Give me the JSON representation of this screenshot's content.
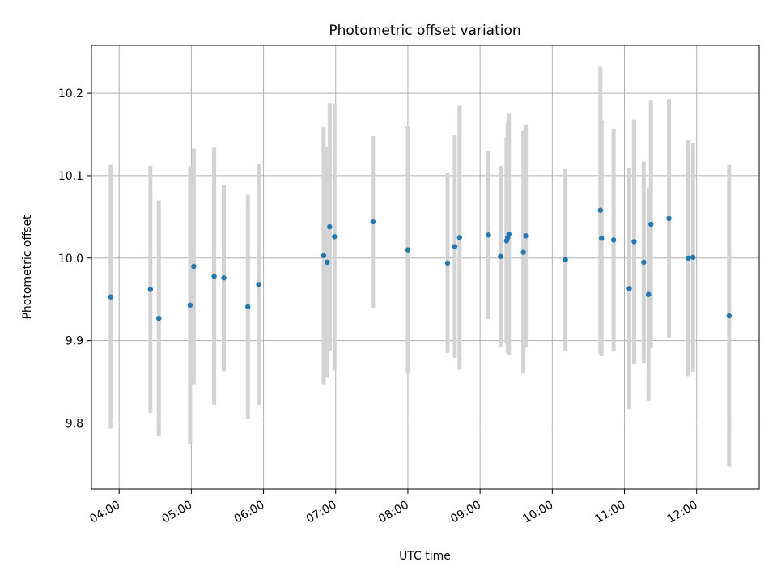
{
  "chart_data": {
    "type": "scatter",
    "title": "Photometric offset variation",
    "xlabel": "UTC time",
    "ylabel": "Photometric offset",
    "x_range": [
      "03:37",
      "12:52"
    ],
    "ylim": [
      9.72,
      10.258
    ],
    "x_ticks": [
      "04:00",
      "05:00",
      "06:00",
      "07:00",
      "08:00",
      "09:00",
      "10:00",
      "11:00",
      "12:00"
    ],
    "y_ticks": [
      9.8,
      9.9,
      10.0,
      10.1,
      10.2
    ],
    "y_tick_labels": [
      "9.8",
      "9.9",
      "10.0",
      "10.1",
      "10.2"
    ],
    "grid": true,
    "marker_color": "#1f77b4",
    "errorbar_color": "#d3d3d3",
    "points": [
      {
        "time": "03:53",
        "y": 9.953,
        "err": 0.16
      },
      {
        "time": "04:26",
        "y": 9.962,
        "err": 0.15
      },
      {
        "time": "04:33",
        "y": 9.927,
        "err": 0.143
      },
      {
        "time": "04:59",
        "y": 9.943,
        "err": 0.168
      },
      {
        "time": "05:02",
        "y": 9.99,
        "err": 0.143
      },
      {
        "time": "05:19",
        "y": 9.978,
        "err": 0.156
      },
      {
        "time": "05:27",
        "y": 9.976,
        "err": 0.113
      },
      {
        "time": "05:47",
        "y": 9.941,
        "err": 0.136
      },
      {
        "time": "05:56",
        "y": 9.968,
        "err": 0.146
      },
      {
        "time": "06:50",
        "y": 10.003,
        "err": 0.156
      },
      {
        "time": "06:53",
        "y": 9.995,
        "err": 0.14
      },
      {
        "time": "06:55",
        "y": 10.038,
        "err": 0.15
      },
      {
        "time": "06:59",
        "y": 10.026,
        "err": 0.162
      },
      {
        "time": "07:31",
        "y": 10.044,
        "err": 0.104
      },
      {
        "time": "08:00",
        "y": 10.01,
        "err": 0.15
      },
      {
        "time": "08:33",
        "y": 9.994,
        "err": 0.109
      },
      {
        "time": "08:39",
        "y": 10.014,
        "err": 0.135
      },
      {
        "time": "08:43",
        "y": 10.025,
        "err": 0.16
      },
      {
        "time": "09:07",
        "y": 10.028,
        "err": 0.102
      },
      {
        "time": "09:17",
        "y": 10.002,
        "err": 0.11
      },
      {
        "time": "09:22",
        "y": 10.021,
        "err": 0.125
      },
      {
        "time": "09:23",
        "y": 10.025,
        "err": 0.14
      },
      {
        "time": "09:24",
        "y": 10.029,
        "err": 0.146
      },
      {
        "time": "09:36",
        "y": 10.007,
        "err": 0.147
      },
      {
        "time": "09:38",
        "y": 10.027,
        "err": 0.135
      },
      {
        "time": "10:11",
        "y": 9.998,
        "err": 0.11
      },
      {
        "time": "10:40",
        "y": 10.058,
        "err": 0.174
      },
      {
        "time": "10:41",
        "y": 10.024,
        "err": 0.143
      },
      {
        "time": "10:51",
        "y": 10.022,
        "err": 0.135
      },
      {
        "time": "11:04",
        "y": 9.963,
        "err": 0.146
      },
      {
        "time": "11:08",
        "y": 10.02,
        "err": 0.148
      },
      {
        "time": "11:16",
        "y": 9.995,
        "err": 0.122
      },
      {
        "time": "11:20",
        "y": 9.956,
        "err": 0.129
      },
      {
        "time": "11:22",
        "y": 10.041,
        "err": 0.15
      },
      {
        "time": "11:37",
        "y": 10.048,
        "err": 0.145
      },
      {
        "time": "11:53",
        "y": 10.0,
        "err": 0.143
      },
      {
        "time": "11:57",
        "y": 10.001,
        "err": 0.139
      },
      {
        "time": "12:27",
        "y": 9.93,
        "err": 0.183
      }
    ]
  }
}
